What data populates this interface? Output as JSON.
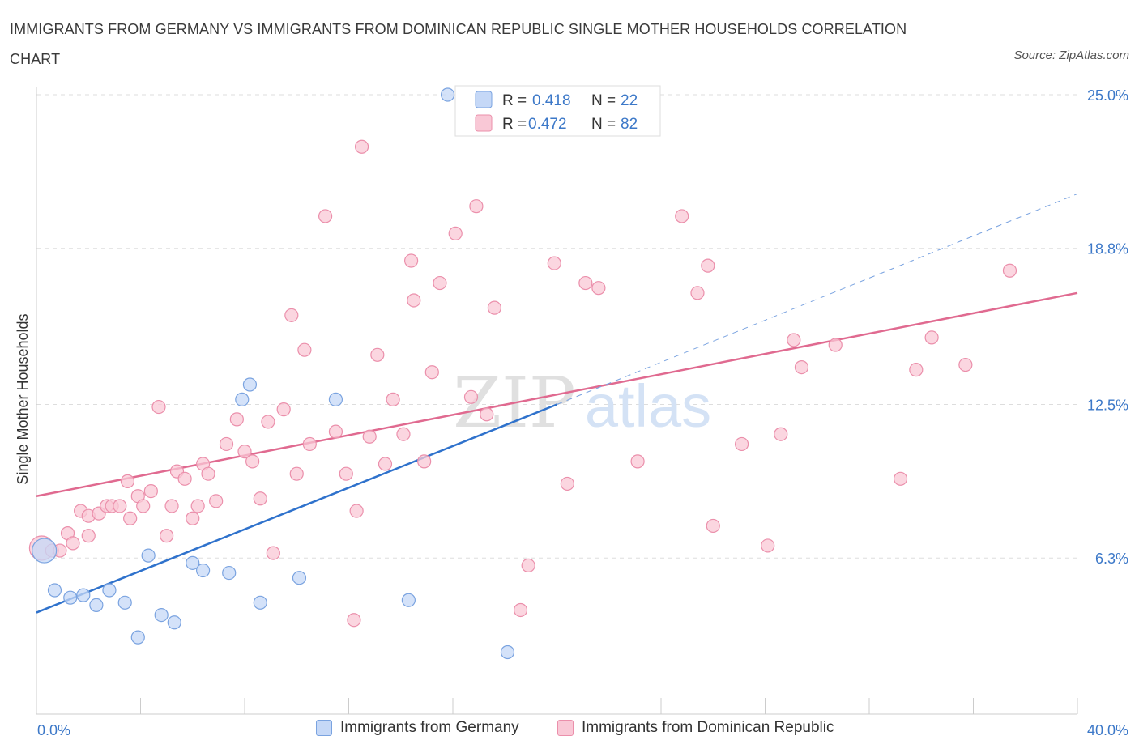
{
  "title": "IMMIGRANTS FROM GERMANY VS IMMIGRANTS FROM DOMINICAN REPUBLIC SINGLE MOTHER HOUSEHOLDS CORRELATION CHART",
  "source": "Source: ZipAtlas.com",
  "colors": {
    "germany_fill": "#c5d8f7",
    "germany_stroke": "#7aa3e0",
    "germany_line": "#2f72cc",
    "dr_fill": "#f9c8d6",
    "dr_stroke": "#eb8fab",
    "dr_line": "#e06a90",
    "axis_text": "#3c78c8",
    "grid": "#dddddd"
  },
  "legend_top": {
    "germany": {
      "r_label": "R =",
      "r_value": "0.418",
      "n_label": "N =",
      "n_value": "22"
    },
    "dr": {
      "r_label": "R =",
      "r_value": "0.472",
      "n_label": "N =",
      "n_value": "82"
    }
  },
  "legend_bottom": {
    "germany": "Immigrants from Germany",
    "dr": "Immigrants from Dominican Republic"
  },
  "watermark": {
    "zip": "ZIP",
    "atlas": "atlas"
  },
  "chart_data": {
    "type": "scatter",
    "xlabel": "",
    "ylabel": "Single Mother Households",
    "xlim": [
      0,
      40
    ],
    "ylim": [
      0,
      25
    ],
    "x_tick_labels": [
      "0.0%",
      "40.0%"
    ],
    "y_ticks": [
      {
        "value": 6.3,
        "label": "6.3%"
      },
      {
        "value": 12.5,
        "label": "12.5%"
      },
      {
        "value": 18.8,
        "label": "18.8%"
      },
      {
        "value": 25.0,
        "label": "25.0%"
      }
    ],
    "grid": true,
    "series": [
      {
        "name": "Immigrants from Germany",
        "trend": {
          "x": [
            0,
            20
          ],
          "y": [
            4.1,
            12.5
          ]
        },
        "trend_extension": {
          "x": [
            20,
            40
          ],
          "y": [
            12.5,
            21.0
          ]
        },
        "points": [
          {
            "x": 0.3,
            "y": 6.6,
            "big": true
          },
          {
            "x": 0.7,
            "y": 5.0
          },
          {
            "x": 1.3,
            "y": 4.7
          },
          {
            "x": 1.8,
            "y": 4.8
          },
          {
            "x": 2.3,
            "y": 4.4
          },
          {
            "x": 2.8,
            "y": 5.0
          },
          {
            "x": 3.4,
            "y": 4.5
          },
          {
            "x": 3.9,
            "y": 3.1
          },
          {
            "x": 4.3,
            "y": 6.4
          },
          {
            "x": 4.8,
            "y": 4.0
          },
          {
            "x": 5.3,
            "y": 3.7
          },
          {
            "x": 6.0,
            "y": 6.1
          },
          {
            "x": 6.4,
            "y": 5.8
          },
          {
            "x": 7.4,
            "y": 5.7
          },
          {
            "x": 7.9,
            "y": 12.7
          },
          {
            "x": 8.2,
            "y": 13.3
          },
          {
            "x": 8.6,
            "y": 4.5
          },
          {
            "x": 10.1,
            "y": 5.5
          },
          {
            "x": 11.5,
            "y": 12.7
          },
          {
            "x": 14.3,
            "y": 4.6
          },
          {
            "x": 15.8,
            "y": 25.0
          },
          {
            "x": 18.1,
            "y": 2.5
          }
        ]
      },
      {
        "name": "Immigrants from Dominican Republic",
        "trend": {
          "x": [
            0,
            40
          ],
          "y": [
            8.8,
            17.0
          ]
        },
        "points": [
          {
            "x": 0.2,
            "y": 6.7,
            "big": true
          },
          {
            "x": 0.6,
            "y": 6.6
          },
          {
            "x": 0.9,
            "y": 6.6
          },
          {
            "x": 1.2,
            "y": 7.3
          },
          {
            "x": 1.4,
            "y": 6.9
          },
          {
            "x": 1.7,
            "y": 8.2
          },
          {
            "x": 2.0,
            "y": 7.2
          },
          {
            "x": 2.0,
            "y": 8.0
          },
          {
            "x": 2.4,
            "y": 8.1
          },
          {
            "x": 2.7,
            "y": 8.4
          },
          {
            "x": 2.9,
            "y": 8.4
          },
          {
            "x": 3.2,
            "y": 8.4
          },
          {
            "x": 3.5,
            "y": 9.4
          },
          {
            "x": 3.6,
            "y": 7.9
          },
          {
            "x": 3.9,
            "y": 8.8
          },
          {
            "x": 4.1,
            "y": 8.4
          },
          {
            "x": 4.4,
            "y": 9.0
          },
          {
            "x": 4.7,
            "y": 12.4
          },
          {
            "x": 5.0,
            "y": 7.2
          },
          {
            "x": 5.2,
            "y": 8.4
          },
          {
            "x": 5.4,
            "y": 9.8
          },
          {
            "x": 5.7,
            "y": 9.5
          },
          {
            "x": 6.0,
            "y": 7.9
          },
          {
            "x": 6.2,
            "y": 8.4
          },
          {
            "x": 6.4,
            "y": 10.1
          },
          {
            "x": 6.6,
            "y": 9.7
          },
          {
            "x": 6.9,
            "y": 8.6
          },
          {
            "x": 7.3,
            "y": 10.9
          },
          {
            "x": 7.7,
            "y": 11.9
          },
          {
            "x": 8.0,
            "y": 10.6
          },
          {
            "x": 8.3,
            "y": 10.2
          },
          {
            "x": 8.6,
            "y": 8.7
          },
          {
            "x": 8.9,
            "y": 11.8
          },
          {
            "x": 9.1,
            "y": 6.5
          },
          {
            "x": 9.5,
            "y": 12.3
          },
          {
            "x": 9.8,
            "y": 16.1
          },
          {
            "x": 10.0,
            "y": 9.7
          },
          {
            "x": 10.3,
            "y": 14.7
          },
          {
            "x": 10.5,
            "y": 10.9
          },
          {
            "x": 11.1,
            "y": 20.1
          },
          {
            "x": 11.5,
            "y": 11.4
          },
          {
            "x": 11.9,
            "y": 9.7
          },
          {
            "x": 12.2,
            "y": 3.8
          },
          {
            "x": 12.3,
            "y": 8.2
          },
          {
            "x": 12.5,
            "y": 22.9
          },
          {
            "x": 12.8,
            "y": 11.2
          },
          {
            "x": 13.1,
            "y": 14.5
          },
          {
            "x": 13.4,
            "y": 10.1
          },
          {
            "x": 13.7,
            "y": 12.7
          },
          {
            "x": 14.1,
            "y": 11.3
          },
          {
            "x": 14.4,
            "y": 18.3
          },
          {
            "x": 14.5,
            "y": 16.7
          },
          {
            "x": 14.9,
            "y": 10.2
          },
          {
            "x": 15.2,
            "y": 13.8
          },
          {
            "x": 15.5,
            "y": 17.4
          },
          {
            "x": 16.1,
            "y": 19.4
          },
          {
            "x": 16.7,
            "y": 12.8
          },
          {
            "x": 16.9,
            "y": 20.5
          },
          {
            "x": 17.3,
            "y": 12.1
          },
          {
            "x": 17.6,
            "y": 16.4
          },
          {
            "x": 18.6,
            "y": 4.2
          },
          {
            "x": 18.9,
            "y": 6.0
          },
          {
            "x": 19.9,
            "y": 18.2
          },
          {
            "x": 20.4,
            "y": 9.3
          },
          {
            "x": 21.1,
            "y": 17.4
          },
          {
            "x": 21.6,
            "y": 17.2
          },
          {
            "x": 23.1,
            "y": 10.2
          },
          {
            "x": 24.8,
            "y": 20.1
          },
          {
            "x": 25.4,
            "y": 17.0
          },
          {
            "x": 25.8,
            "y": 18.1
          },
          {
            "x": 26.0,
            "y": 7.6
          },
          {
            "x": 27.1,
            "y": 10.9
          },
          {
            "x": 28.1,
            "y": 6.8
          },
          {
            "x": 28.6,
            "y": 11.3
          },
          {
            "x": 29.1,
            "y": 15.1
          },
          {
            "x": 29.4,
            "y": 14.0
          },
          {
            "x": 30.7,
            "y": 14.9
          },
          {
            "x": 33.2,
            "y": 9.5
          },
          {
            "x": 33.8,
            "y": 13.9
          },
          {
            "x": 34.4,
            "y": 15.2
          },
          {
            "x": 35.7,
            "y": 14.1
          },
          {
            "x": 37.4,
            "y": 17.9
          }
        ]
      }
    ]
  }
}
